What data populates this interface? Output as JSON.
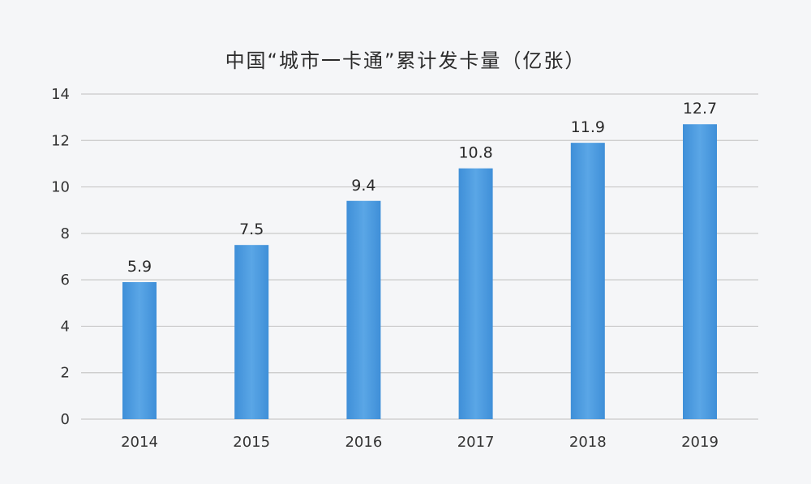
{
  "chart_data": {
    "type": "bar",
    "title": "中国“城市一卡通”累计发卡量（亿张）",
    "xlabel": "",
    "ylabel": "",
    "categories": [
      "2014",
      "2015",
      "2016",
      "2017",
      "2018",
      "2019"
    ],
    "values": [
      5.9,
      7.5,
      9.4,
      10.8,
      11.9,
      12.7
    ],
    "data_labels": [
      "5.9",
      "7.5",
      "9.4",
      "10.8",
      "11.9",
      "12.7"
    ],
    "ylim": [
      0,
      14
    ],
    "yticks": [
      0,
      2,
      4,
      6,
      8,
      10,
      12,
      14
    ],
    "grid": true,
    "legend": "none",
    "bar_color": "#3f8fd8",
    "bar_color_light": "#5aa6e6",
    "grid_color": "#c9c9c9"
  }
}
